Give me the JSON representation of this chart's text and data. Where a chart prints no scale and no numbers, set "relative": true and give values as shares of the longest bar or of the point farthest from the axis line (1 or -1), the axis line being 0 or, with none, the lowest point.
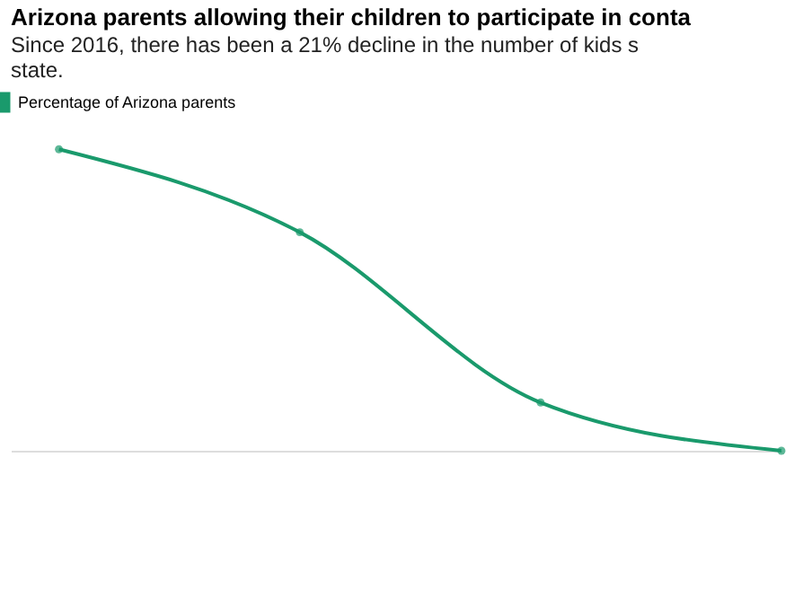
{
  "chart_data": {
    "type": "line",
    "title": "Arizona parents allowing their children to participate in conta",
    "subtitle": [
      "Since 2016, there has been a 21% decline in the number of kids s",
      "state."
    ],
    "categories": [
      null,
      null,
      null,
      null
    ],
    "series": [
      {
        "name": "Percentage of Arizona parents",
        "color": "#1a9a6c",
        "values": [
          1,
          0.725,
          0.16,
          0
        ]
      }
    ],
    "relative": true,
    "legend": "top left",
    "marker": "circle",
    "line_style": "solid"
  }
}
